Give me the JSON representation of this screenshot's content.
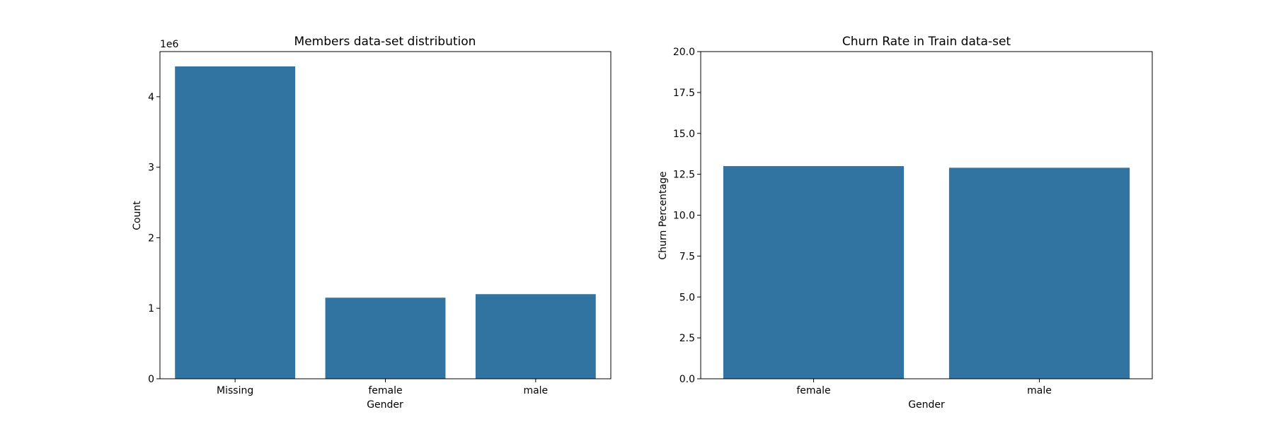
{
  "chart_data": [
    {
      "type": "bar",
      "title": "Members data-set distribution",
      "xlabel": "Gender",
      "ylabel": "Count",
      "categories": [
        "Missing",
        "female",
        "male"
      ],
      "values": [
        4430000,
        1150000,
        1200000
      ],
      "ylim": [
        0,
        4640000
      ],
      "yticks": [
        0,
        1,
        2,
        3,
        4
      ],
      "ytick_scale": 1000000,
      "offset_label": "1e6",
      "bar_color": "#3274a1",
      "grid": false
    },
    {
      "type": "bar",
      "title": "Churn Rate in Train data-set",
      "xlabel": "Gender",
      "ylabel": "Churn Percentage",
      "categories": [
        "female",
        "male"
      ],
      "values": [
        13.0,
        12.9
      ],
      "ylim": [
        0,
        20
      ],
      "yticks": [
        "0.0",
        "2.5",
        "5.0",
        "7.5",
        "10.0",
        "12.5",
        "15.0",
        "17.5",
        "20.0"
      ],
      "bar_color": "#3274a1",
      "grid": false
    }
  ]
}
